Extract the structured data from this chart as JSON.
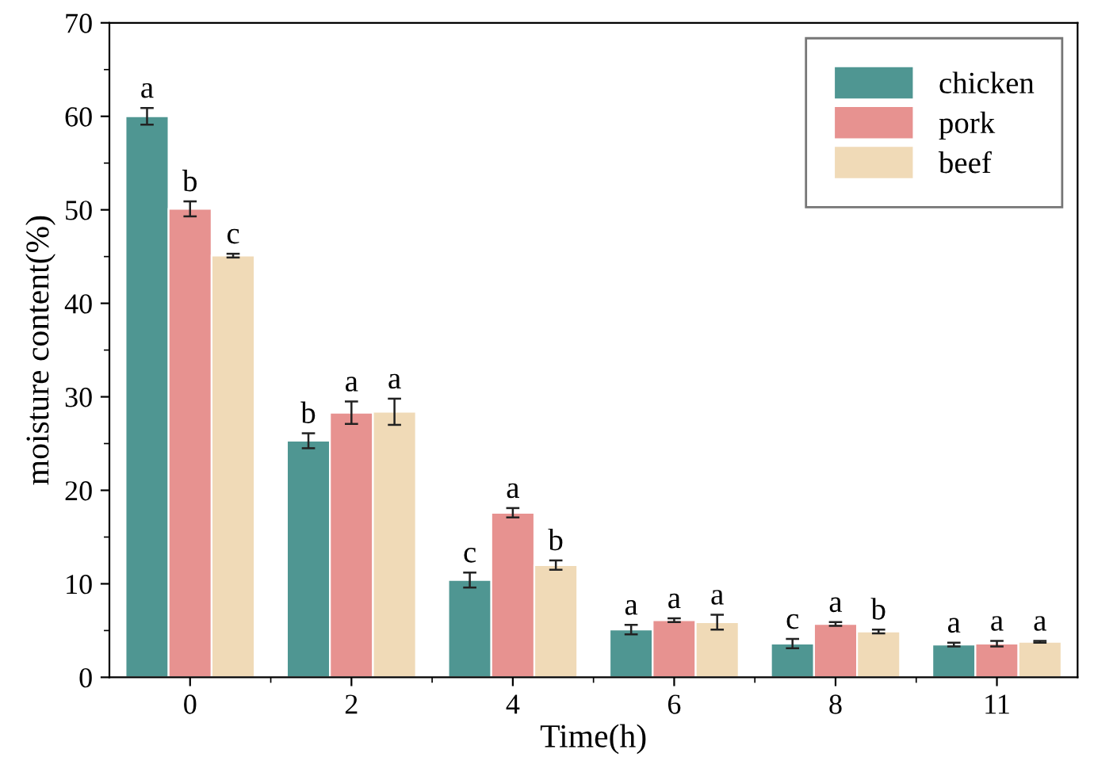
{
  "chart_data": {
    "type": "bar",
    "xlabel": "Time(h)",
    "ylabel": "moisture content(%)",
    "categories": [
      "0",
      "2",
      "4",
      "6",
      "8",
      "11"
    ],
    "series": [
      {
        "name": "chicken",
        "color": "#4f9692",
        "values": [
          60.0,
          25.3,
          10.4,
          5.1,
          3.6,
          3.5
        ],
        "errors": [
          0.9,
          0.8,
          0.8,
          0.5,
          0.5,
          0.2
        ],
        "value_labels": [
          "a",
          "b",
          "c",
          "a",
          "c",
          "a"
        ]
      },
      {
        "name": "pork",
        "color": "#e79290",
        "values": [
          50.1,
          28.3,
          17.6,
          6.1,
          5.7,
          3.6
        ],
        "errors": [
          0.8,
          1.2,
          0.5,
          0.2,
          0.2,
          0.3
        ],
        "value_labels": [
          "b",
          "a",
          "a",
          "a",
          "a",
          "a"
        ]
      },
      {
        "name": "beef",
        "color": "#f0dab7",
        "values": [
          45.1,
          28.4,
          12.0,
          5.9,
          4.9,
          3.8
        ],
        "errors": [
          0.2,
          1.4,
          0.5,
          0.8,
          0.2,
          0.1
        ],
        "value_labels": [
          "c",
          "a",
          "b",
          "a",
          "b",
          "a"
        ]
      }
    ],
    "ylim": [
      0,
      70
    ],
    "yticks": [
      0,
      10,
      20,
      30,
      40,
      50,
      60,
      70
    ],
    "legend": "top right",
    "grid": false
  }
}
